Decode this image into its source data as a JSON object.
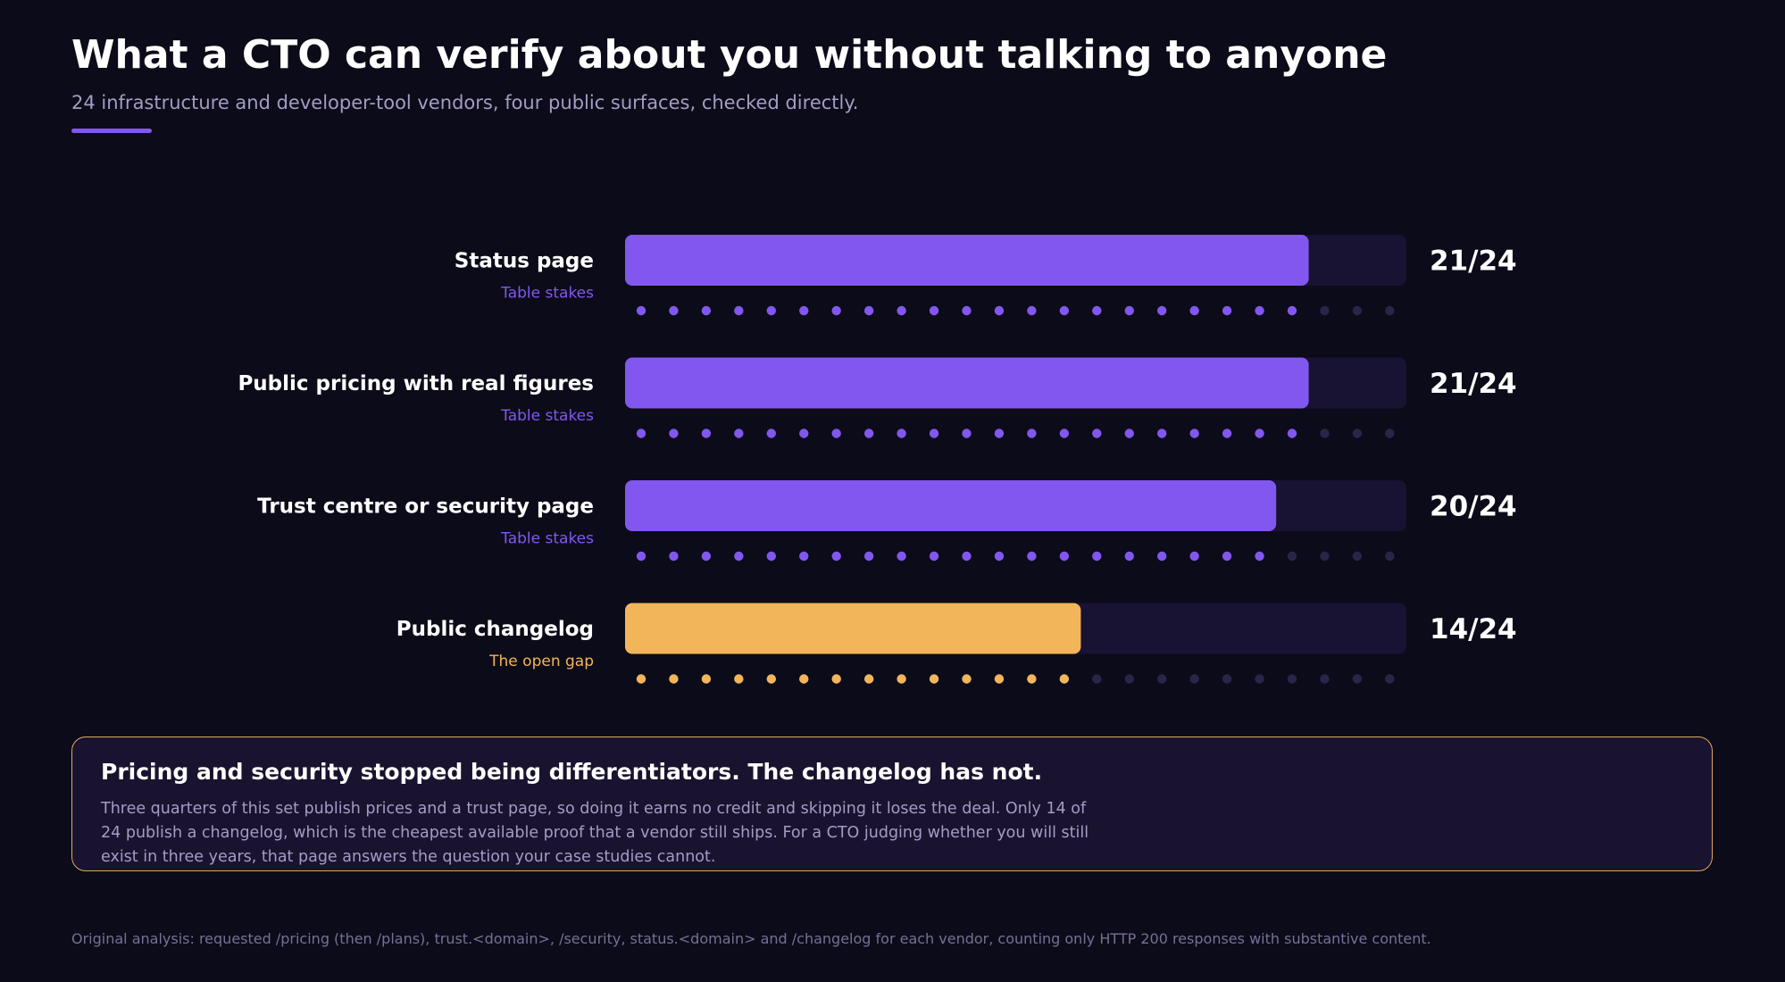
{
  "header": {
    "title": "What a CTO can verify about you without talking to anyone",
    "subtitle": "24 infrastructure and developer-tool vendors, four public surfaces, checked directly."
  },
  "colors": {
    "purple": "#8257f0",
    "amber": "#f2b55a",
    "track": "#181233",
    "dot_empty": "#2a2548",
    "background": "#0c0b19"
  },
  "chart_data": {
    "type": "bar",
    "orientation": "horizontal",
    "total": 24,
    "categories": [
      "Status page",
      "Public pricing with real figures",
      "Trust centre or security page",
      "Public changelog"
    ],
    "tags": [
      "Table stakes",
      "Table stakes",
      "Table stakes",
      "The open gap"
    ],
    "values": [
      21,
      21,
      20,
      14
    ],
    "value_labels": [
      "21/24",
      "21/24",
      "20/24",
      "14/24"
    ],
    "bar_colors": [
      "#8257f0",
      "#8257f0",
      "#8257f0",
      "#f2b55a"
    ],
    "xlim": [
      0,
      24
    ]
  },
  "callout": {
    "title": "Pricing and security stopped being differentiators. The changelog has not.",
    "body": "Three quarters of this set publish prices and a trust page, so doing it earns no credit and skipping it loses the deal. Only 14 of 24 publish a changelog, which is the cheapest available proof that a vendor still ships. For a CTO judging whether you will still exist in three years, that page answers the question your case studies cannot."
  },
  "footnote": "Original analysis: requested /pricing (then /plans), trust.<domain>, /security, status.<domain> and /changelog for each vendor, counting only HTTP 200 responses with substantive content."
}
